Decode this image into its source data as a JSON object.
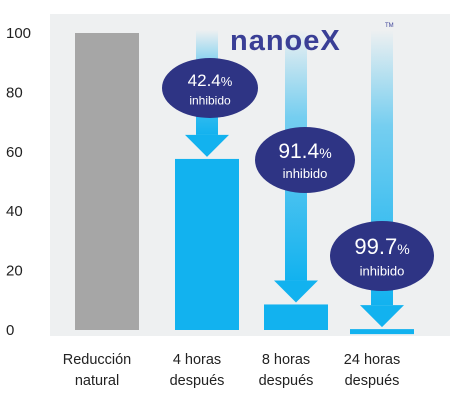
{
  "chart_data": {
    "type": "bar",
    "categories": [
      [
        "Reducción",
        "natural"
      ],
      [
        "4 horas",
        "después"
      ],
      [
        "8 horas",
        "después"
      ],
      [
        "24 horas",
        "después"
      ]
    ],
    "values": [
      100,
      57.6,
      8.6,
      0.3
    ],
    "ylim": [
      0,
      100
    ],
    "yticks": [
      0,
      20,
      40,
      60,
      80,
      100
    ],
    "grid": false,
    "bar_colors": [
      "#a6a6a6",
      "#12b2ef",
      "#12b2ef",
      "#12b2ef"
    ],
    "annotations": [
      {
        "bar": 1,
        "value": "42.4",
        "unit": "%",
        "label": "inhibido"
      },
      {
        "bar": 2,
        "value": "91.4",
        "unit": "%",
        "label": "inhibido"
      },
      {
        "bar": 3,
        "value": "99.7",
        "unit": "%",
        "label": "inhibido"
      }
    ],
    "annotation_color": "#2e3484",
    "arrow_color": "#12b2ef",
    "background_color": "#eef0f1"
  },
  "logo": {
    "text": "nanoeX",
    "trademark": "TM",
    "color": "#3a3f96"
  }
}
